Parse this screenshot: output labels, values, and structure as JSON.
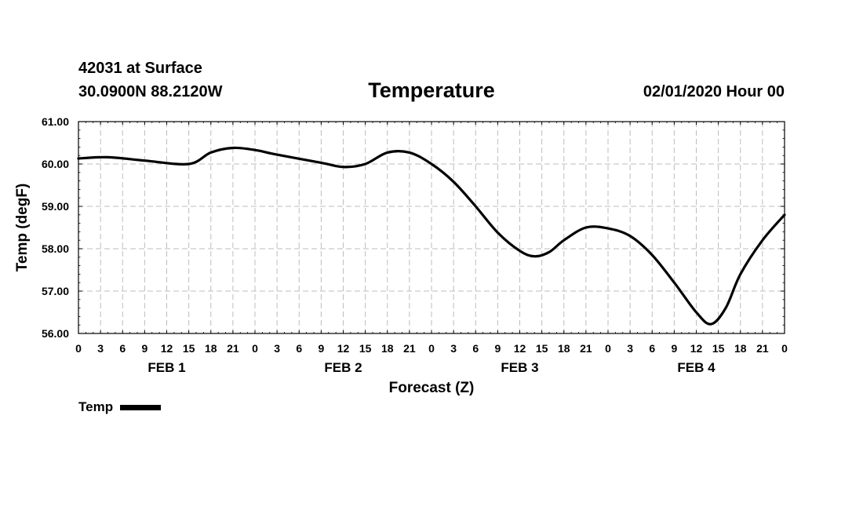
{
  "header": {
    "station": "42031 at Surface",
    "coords": "30.0900N 88.2120W",
    "title": "Temperature",
    "datetime": "02/01/2020 Hour 00"
  },
  "chart_data": {
    "type": "line",
    "title": "Temperature",
    "xlabel": "Forecast (Z)",
    "ylabel": "Temp (degF)",
    "xlim": [
      0,
      96
    ],
    "ylim": [
      56,
      61
    ],
    "yticks": [
      "56.00",
      "57.00",
      "58.00",
      "59.00",
      "60.00",
      "61.00"
    ],
    "xtick_labels": [
      "0",
      "3",
      "6",
      "9",
      "12",
      "15",
      "18",
      "21",
      "0",
      "3",
      "6",
      "9",
      "12",
      "15",
      "18",
      "21",
      "0",
      "3",
      "6",
      "9",
      "12",
      "15",
      "18",
      "21",
      "0",
      "3",
      "6",
      "9",
      "12",
      "15",
      "18",
      "21",
      "0"
    ],
    "day_labels": [
      {
        "label": "FEB 1",
        "hour": 12
      },
      {
        "label": "FEB 2",
        "hour": 36
      },
      {
        "label": "FEB 3",
        "hour": 60
      },
      {
        "label": "FEB 4",
        "hour": 84
      }
    ],
    "grid": true,
    "legend": "bottom-left",
    "series": [
      {
        "name": "Temp",
        "color": "#000000",
        "x": [
          0,
          4,
          9,
          15,
          18,
          21,
          24,
          27,
          33,
          36,
          39,
          42,
          45,
          48,
          51,
          54,
          57,
          60,
          62,
          64,
          66,
          69,
          72,
          75,
          78,
          81,
          84,
          86,
          88,
          90,
          93,
          96
        ],
        "y": [
          60.13,
          60.16,
          60.08,
          60.0,
          60.27,
          60.38,
          60.33,
          60.22,
          60.03,
          59.93,
          60.0,
          60.27,
          60.27,
          60.0,
          59.58,
          59.0,
          58.38,
          57.95,
          57.82,
          57.92,
          58.2,
          58.5,
          58.48,
          58.3,
          57.85,
          57.2,
          56.5,
          56.22,
          56.6,
          57.4,
          58.2,
          58.8
        ]
      }
    ]
  }
}
